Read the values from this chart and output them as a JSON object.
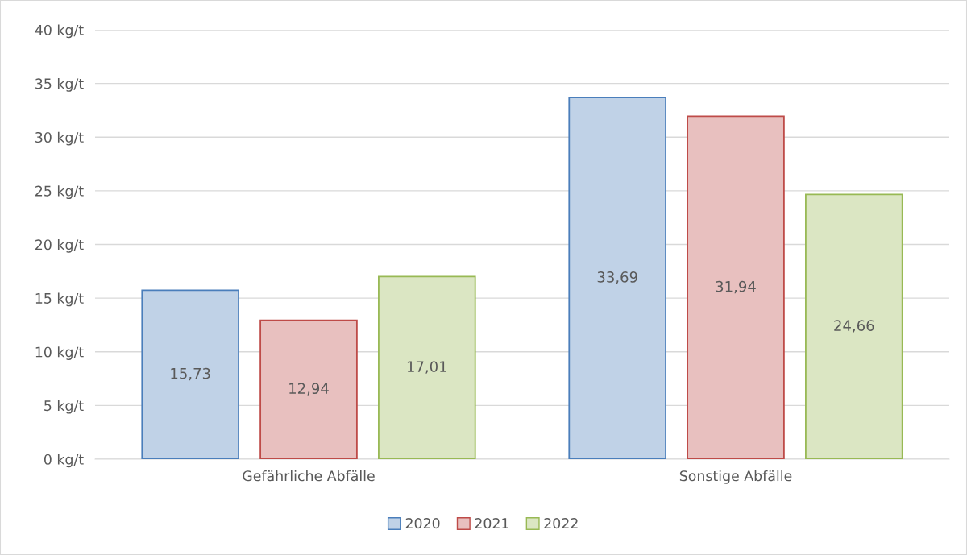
{
  "chart_data": {
    "type": "bar",
    "categories": [
      "Gefährliche Abfälle",
      "Sonstige Abfälle"
    ],
    "series": [
      {
        "name": "2020",
        "color": "#4a7ebb",
        "values": [
          15.73,
          33.69
        ],
        "value_labels": [
          "15,73",
          "33,69"
        ]
      },
      {
        "name": "2021",
        "color": "#be4b48",
        "values": [
          12.94,
          31.94
        ],
        "value_labels": [
          "12,94",
          "31,94"
        ]
      },
      {
        "name": "2022",
        "color": "#98b954",
        "values": [
          17.01,
          24.66
        ],
        "value_labels": [
          "17,01",
          "24,66"
        ]
      }
    ],
    "ylim": [
      0,
      40
    ],
    "yticks": [
      {
        "value": 0,
        "label": "0 kg/t"
      },
      {
        "value": 5,
        "label": "5 kg/t"
      },
      {
        "value": 10,
        "label": "10 kg/t"
      },
      {
        "value": 15,
        "label": "15 kg/t"
      },
      {
        "value": 20,
        "label": "20 kg/t"
      },
      {
        "value": 25,
        "label": "25 kg/t"
      },
      {
        "value": 30,
        "label": "30 kg/t"
      },
      {
        "value": 35,
        "label": "35 kg/t"
      },
      {
        "value": 40,
        "label": "40 kg/t"
      }
    ],
    "grid": "y",
    "legend": "bottom"
  }
}
